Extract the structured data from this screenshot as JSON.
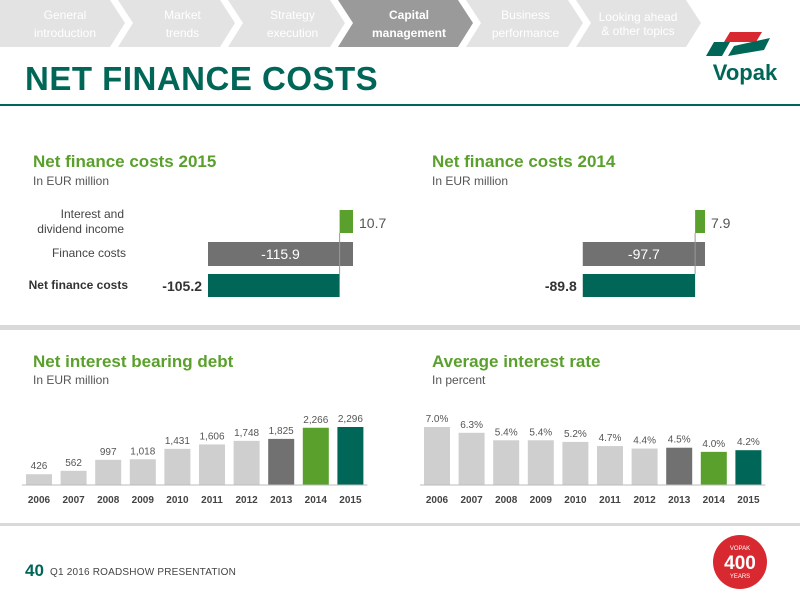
{
  "nav": {
    "steps": [
      {
        "line1": "General",
        "line2": "introduction",
        "active": false
      },
      {
        "line1": "Market",
        "line2": "trends",
        "active": false
      },
      {
        "line1": "Strategy",
        "line2": "execution",
        "active": false
      },
      {
        "line1": "Capital",
        "line2": "management",
        "active": true
      },
      {
        "line1": "Business",
        "line2": "performance",
        "active": false
      },
      {
        "line1": "Looking ahead",
        "line2": "& other topics",
        "active": false
      }
    ]
  },
  "header": {
    "title": "NET FINANCE COSTS"
  },
  "logo": {
    "text": "Vopak",
    "colors": {
      "green": "#006657",
      "red": "#d7292f"
    }
  },
  "sections": {
    "nfc2015": {
      "title": "Net finance costs 2015",
      "subtitle": "In EUR million"
    },
    "nfc2014": {
      "title": "Net finance costs 2014",
      "subtitle": "In EUR million"
    },
    "debt": {
      "title": "Net interest bearing debt",
      "subtitle": "In EUR million"
    },
    "rate": {
      "title": "Average interest rate",
      "subtitle": "In percent"
    }
  },
  "waterfall_labels": {
    "interest_line1": "Interest and",
    "interest_line2": "dividend income",
    "finance_costs": "Finance costs",
    "net_finance_costs": "Net finance costs"
  },
  "colors": {
    "dark_green": "#006657",
    "light_green": "#5aa02c",
    "dark_grey": "#717171",
    "light_grey": "#cfcfcf",
    "nav_grey": "#e3e3e3",
    "nav_active": "#9a9a9a"
  },
  "chart_data": [
    {
      "type": "bar",
      "title": "Net finance costs 2015",
      "subtitle": "In EUR million",
      "categories": [
        "Interest and dividend income",
        "Finance costs",
        "Net finance costs"
      ],
      "values": [
        10.7,
        -115.9,
        -105.2
      ],
      "labels": [
        "10.7",
        "-115.9",
        "-105.2"
      ]
    },
    {
      "type": "bar",
      "title": "Net finance costs 2014",
      "subtitle": "In EUR million",
      "categories": [
        "Interest and dividend income",
        "Finance costs",
        "Net finance costs"
      ],
      "values": [
        7.9,
        -97.7,
        -89.8
      ],
      "labels": [
        "7.9",
        "-97.7",
        "-89.8"
      ]
    },
    {
      "type": "bar",
      "title": "Net interest bearing debt",
      "subtitle": "In EUR million",
      "categories": [
        "2006",
        "2007",
        "2008",
        "2009",
        "2010",
        "2011",
        "2012",
        "2013",
        "2014",
        "2015"
      ],
      "values": [
        426,
        562,
        997,
        1018,
        1431,
        1606,
        1748,
        1825,
        2266,
        2296
      ],
      "labels": [
        "426",
        "562",
        "997",
        "1,018",
        "1,431",
        "1,606",
        "1,748",
        "1,825",
        "2,266",
        "2,296"
      ],
      "ylim": [
        0,
        2400
      ]
    },
    {
      "type": "bar",
      "title": "Average interest rate",
      "subtitle": "In percent",
      "categories": [
        "2006",
        "2007",
        "2008",
        "2009",
        "2010",
        "2011",
        "2012",
        "2013",
        "2014",
        "2015"
      ],
      "values": [
        7.0,
        6.3,
        5.4,
        5.4,
        5.2,
        4.7,
        4.4,
        4.5,
        4.0,
        4.2
      ],
      "labels": [
        "7.0%",
        "6.3%",
        "5.4%",
        "5.4%",
        "5.2%",
        "4.7%",
        "4.4%",
        "4.5%",
        "4.0%",
        "4.2%"
      ],
      "ylim": [
        0,
        7.5
      ]
    }
  ],
  "footer": {
    "page_number": "40",
    "text": "Q1 2016 ROADSHOW PRESENTATION"
  },
  "badge": {
    "top": "VOPAK",
    "number": "400",
    "bottom": "YEARS"
  }
}
